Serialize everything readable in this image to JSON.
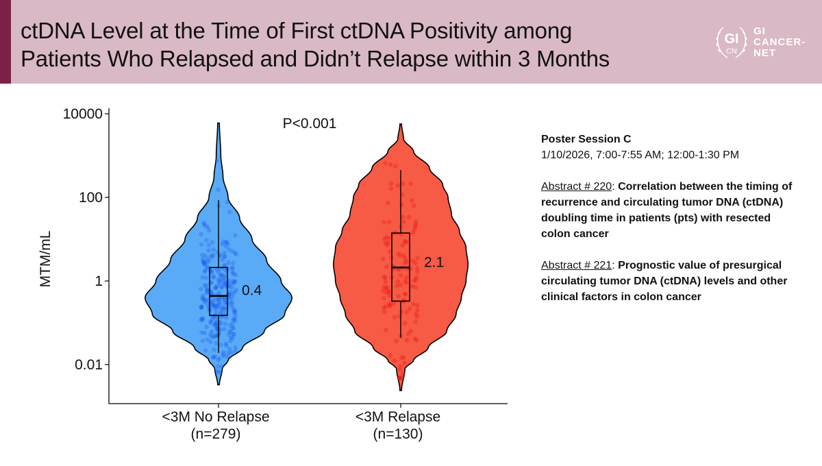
{
  "header": {
    "title_line1": "ctDNA Level at the Time of First ctDNA Positivity among",
    "title_line2": "Patients Who Relapsed and Didn’t Relapse within 3 Months",
    "logo": {
      "emblem_top": "GI",
      "emblem_bottom": "CN",
      "text_lines": [
        "GI",
        "CANCER-",
        "NET"
      ]
    },
    "colors": {
      "band": "#d9b9c5",
      "accent": "#7b2148"
    }
  },
  "sidebar": {
    "session_title": "Poster Session C",
    "session_time": "1/10/2026, 7:00-7:55 AM; 12:00-1:30 PM",
    "abstracts": [
      {
        "label": "Abstract # 220",
        "separator": ": ",
        "title": "Correlation between the timing of recurrence and circulating tumor DNA (ctDNA) doubling time in patients (pts) with resected colon cancer"
      },
      {
        "label": "Abstract # 221",
        "separator": ": ",
        "title": "Prognostic value of presurgical circulating tumor DNA (ctDNA) levels and other clinical factors in colon cancer"
      }
    ]
  },
  "chart_data": {
    "type": "violin",
    "title": "",
    "xlabel": "",
    "ylabel": "MTM/mL",
    "yscale": "log10",
    "ylim": [
      0.002,
      12000
    ],
    "yticks": [
      0.01,
      1,
      100,
      10000
    ],
    "ytick_labels": [
      "0.01",
      "1",
      "100",
      "10000"
    ],
    "annotation": "P<0.001",
    "grid": false,
    "legend": "none",
    "categories": [
      "<3M No Relapse",
      "<3M Relapse"
    ],
    "category_n": [
      "(n=279)",
      "(n=130)"
    ],
    "series": [
      {
        "name": "<3M No Relapse",
        "n": 279,
        "color": "#5aabf7",
        "point_color": "#1d5ef0",
        "median_label": "0.4",
        "median": 0.44,
        "q1": 0.15,
        "q3": 2.1,
        "whisker_low": 0.019,
        "whisker_high": 86,
        "violin_min": 0.0033,
        "violin_max": 6000,
        "density_profile": [
          [
            3.8,
            0.0
          ],
          [
            3.0,
            0.02
          ],
          [
            2.5,
            0.05
          ],
          [
            2.0,
            0.12
          ],
          [
            1.5,
            0.28
          ],
          [
            1.0,
            0.45
          ],
          [
            0.5,
            0.65
          ],
          [
            0.0,
            0.85
          ],
          [
            -0.4,
            1.0
          ],
          [
            -0.8,
            0.9
          ],
          [
            -1.2,
            0.62
          ],
          [
            -1.6,
            0.32
          ],
          [
            -1.9,
            0.12
          ],
          [
            -2.1,
            0.04
          ],
          [
            -2.48,
            0.0
          ]
        ]
      },
      {
        "name": "<3M Relapse",
        "n": 130,
        "color": "#f75a45",
        "point_color": "#e8150f",
        "median_label": "2.1",
        "median": 2.1,
        "q1": 0.33,
        "q3": 14,
        "whisker_low": 0.044,
        "whisker_high": 450,
        "violin_min": 0.0024,
        "violin_max": 5700,
        "density_profile": [
          [
            3.75,
            0.0
          ],
          [
            3.4,
            0.03
          ],
          [
            3.1,
            0.18
          ],
          [
            2.7,
            0.42
          ],
          [
            2.3,
            0.62
          ],
          [
            2.0,
            0.7
          ],
          [
            1.6,
            0.75
          ],
          [
            1.2,
            0.87
          ],
          [
            0.8,
            0.97
          ],
          [
            0.4,
            1.0
          ],
          [
            0.0,
            0.97
          ],
          [
            -0.4,
            0.9
          ],
          [
            -0.8,
            0.82
          ],
          [
            -1.2,
            0.68
          ],
          [
            -1.6,
            0.4
          ],
          [
            -1.9,
            0.18
          ],
          [
            -2.1,
            0.05
          ],
          [
            -2.62,
            0.0
          ]
        ]
      }
    ]
  }
}
